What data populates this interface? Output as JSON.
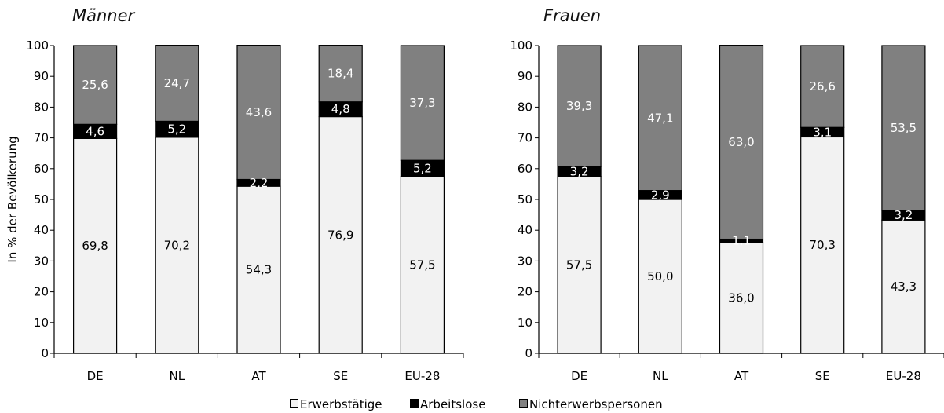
{
  "chart_data": [
    {
      "type": "bar",
      "stacked": true,
      "title": "Männer",
      "ylabel": "In % der Bevölkerung",
      "xlabel": "",
      "ylim": [
        0,
        100
      ],
      "yticks": [
        "0",
        "10",
        "20",
        "30",
        "40",
        "50",
        "60",
        "70",
        "80",
        "90",
        "100"
      ],
      "categories": [
        "DE",
        "NL",
        "AT",
        "SE",
        "EU-28"
      ],
      "series": [
        {
          "name": "Erwerbstätige",
          "values": [
            69.8,
            70.2,
            54.3,
            76.9,
            57.5
          ],
          "labels": [
            "69,8",
            "70,2",
            "54,3",
            "76,9",
            "57,5"
          ]
        },
        {
          "name": "Arbeitslose",
          "values": [
            4.6,
            5.2,
            2.2,
            4.8,
            5.2
          ],
          "labels": [
            "4,6",
            "5,2",
            "2,2",
            "4,8",
            "5,2"
          ]
        },
        {
          "name": "Nichterwerbspersonen",
          "values": [
            25.6,
            24.7,
            43.6,
            18.4,
            37.3
          ],
          "labels": [
            "25,6",
            "24,7",
            "43,6",
            "18,4",
            "37,3"
          ]
        }
      ]
    },
    {
      "type": "bar",
      "stacked": true,
      "title": "Frauen",
      "ylabel": "",
      "xlabel": "",
      "ylim": [
        0,
        100
      ],
      "yticks": [
        "0",
        "10",
        "20",
        "30",
        "40",
        "50",
        "60",
        "70",
        "80",
        "90",
        "100"
      ],
      "categories": [
        "DE",
        "NL",
        "AT",
        "SE",
        "EU-28"
      ],
      "series": [
        {
          "name": "Erwerbstätige",
          "values": [
            57.5,
            50.0,
            36.0,
            70.3,
            43.3
          ],
          "labels": [
            "57,5",
            "50,0",
            "36,0",
            "70,3",
            "43,3"
          ]
        },
        {
          "name": "Arbeitslose",
          "values": [
            3.2,
            2.9,
            1.1,
            3.1,
            3.2
          ],
          "labels": [
            "3,2",
            "2,9",
            "1,1",
            "3,1",
            "3,2"
          ]
        },
        {
          "name": "Nichterwerbspersonen",
          "values": [
            39.3,
            47.1,
            63.0,
            26.6,
            53.5
          ],
          "labels": [
            "39,3",
            "47,1",
            "63,0",
            "26,6",
            "53,5"
          ]
        }
      ]
    }
  ],
  "legend": {
    "position": "bottom",
    "items": [
      {
        "label": "Erwerbstätige",
        "color": "#f2f2f2"
      },
      {
        "label": "Arbeitslose",
        "color": "#000000"
      },
      {
        "label": "Nichterwerbspersonen",
        "color": "#808080"
      }
    ]
  },
  "colors": {
    "Erwerbstätige": "#f2f2f2",
    "Arbeitslose": "#000000",
    "Nichterwerbspersonen": "#808080",
    "label_on_dark": "#ffffff",
    "label_on_light": "#000000"
  }
}
